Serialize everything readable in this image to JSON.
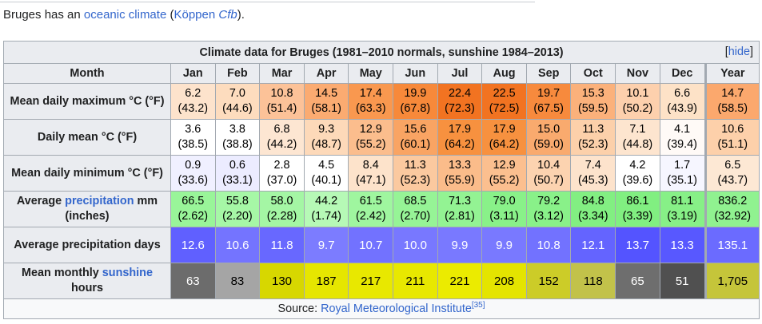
{
  "intro": {
    "prefix": "Bruges has an ",
    "link1": "oceanic climate",
    "mid": " (",
    "link2a": "Köppen ",
    "link2b": "Cfb",
    "suffix": ")."
  },
  "table": {
    "title": "Climate data for Bruges (1981–2010 normals, sunshine 1984–2013)",
    "hide_label": "hide",
    "months_header": "Month",
    "months": [
      "Jan",
      "Feb",
      "Mar",
      "Apr",
      "May",
      "Jun",
      "Jul",
      "Aug",
      "Sep",
      "Oct",
      "Nov",
      "Dec",
      "Year"
    ],
    "rows": [
      {
        "label": "Mean daily maximum °C (°F)",
        "values": [
          "6.2",
          "7.0",
          "10.8",
          "14.5",
          "17.4",
          "19.9",
          "22.4",
          "22.5",
          "19.7",
          "15.3",
          "10.1",
          "6.6",
          "14.7"
        ],
        "alt": [
          "(43.2)",
          "(44.6)",
          "(51.4)",
          "(58.1)",
          "(63.3)",
          "(67.8)",
          "(72.3)",
          "(72.5)",
          "(67.5)",
          "(59.5)",
          "(50.2)",
          "(43.9)",
          "(58.5)"
        ],
        "colors": [
          "#fde3cc",
          "#fddcbe",
          "#fcc298",
          "#fbab71",
          "#f9984f",
          "#f7893a",
          "#f27321",
          "#f27321",
          "#f78a3d",
          "#fbb17b",
          "#fdd0ad",
          "#fde2c7",
          "#fba86d"
        ]
      },
      {
        "label": "Daily mean °C (°F)",
        "values": [
          "3.6",
          "3.8",
          "6.8",
          "9.3",
          "12.9",
          "15.6",
          "17.9",
          "17.9",
          "15.0",
          "11.3",
          "7.1",
          "4.1",
          "10.6"
        ],
        "alt": [
          "(38.5)",
          "(38.8)",
          "(44.2)",
          "(48.7)",
          "(55.2)",
          "(60.1)",
          "(64.2)",
          "(64.2)",
          "(59.0)",
          "(52.3)",
          "(44.8)",
          "(39.4)",
          "(51.1)"
        ],
        "colors": [
          "#ffffff",
          "#ffffff",
          "#fde6d2",
          "#fdd9b9",
          "#fbbd8d",
          "#f9a463",
          "#f7913f",
          "#f7913f",
          "#f9aa6e",
          "#fcd0aa",
          "#fde5cf",
          "#fffaf7",
          "#fdd0aa"
        ]
      },
      {
        "label": "Mean daily minimum °C (°F)",
        "values": [
          "0.9",
          "0.6",
          "2.8",
          "4.5",
          "8.4",
          "11.3",
          "13.3",
          "12.9",
          "10.4",
          "7.4",
          "4.2",
          "1.7",
          "6.5"
        ],
        "alt": [
          "(33.6)",
          "(33.1)",
          "(37.0)",
          "(40.1)",
          "(47.1)",
          "(52.3)",
          "(55.9)",
          "(55.2)",
          "(50.7)",
          "(45.3)",
          "(39.6)",
          "(35.1)",
          "(43.7)"
        ],
        "colors": [
          "#f0f0ff",
          "#ececff",
          "#ffffff",
          "#ffffff",
          "#fde3cb",
          "#fbc99f",
          "#fbbc8a",
          "#fbbf8f",
          "#fcd3b0",
          "#fde3cc",
          "#ffffff",
          "#f6f6ff",
          "#fde8d4"
        ]
      },
      {
        "label": "Average precipitation mm (inches)",
        "values": [
          "66.5",
          "55.8",
          "58.0",
          "44.2",
          "61.5",
          "68.5",
          "71.3",
          "79.0",
          "79.2",
          "84.8",
          "86.1",
          "81.1",
          "836.2"
        ],
        "alt": [
          "(2.62)",
          "(2.20)",
          "(2.28)",
          "(1.74)",
          "(2.42)",
          "(2.70)",
          "(2.81)",
          "(3.11)",
          "(3.12)",
          "(3.34)",
          "(3.39)",
          "(3.19)",
          "(32.92)"
        ],
        "colors": [
          "#99f599",
          "#a6f7a6",
          "#a4f6a4",
          "#b6f9b6",
          "#9ff69f",
          "#96f496",
          "#93f393",
          "#89f189",
          "#89f189",
          "#82ef82",
          "#81ef81",
          "#87f087",
          "#90f290"
        ]
      },
      {
        "label": "Average precipitation days",
        "values": [
          "12.6",
          "10.6",
          "11.8",
          "9.7",
          "10.7",
          "10.0",
          "9.9",
          "9.9",
          "10.8",
          "12.1",
          "13.7",
          "13.3",
          "135.1"
        ],
        "colors": [
          "#6060ff",
          "#7474ff",
          "#6868ff",
          "#7c7cff",
          "#7272ff",
          "#7878ff",
          "#7979ff",
          "#7979ff",
          "#7272ff",
          "#6464ff",
          "#5454ff",
          "#5858ff",
          "#6b6bff"
        ]
      },
      {
        "label": "Mean monthly sunshine hours",
        "values": [
          "63",
          "83",
          "130",
          "187",
          "217",
          "211",
          "221",
          "208",
          "152",
          "118",
          "65",
          "51",
          "1,705"
        ],
        "colors": [
          "#6c6c6c",
          "#a5a5a5",
          "#d7d700",
          "#e6e600",
          "#e8e800",
          "#e8e800",
          "#ebeb00",
          "#e4e400",
          "#cccc28",
          "#c2c24a",
          "#6e6e6e",
          "#505050",
          "#c5c53a"
        ]
      }
    ],
    "source_prefix": "Source: ",
    "source_link": "Royal Meteorological Institute",
    "source_ref": "[35]"
  }
}
